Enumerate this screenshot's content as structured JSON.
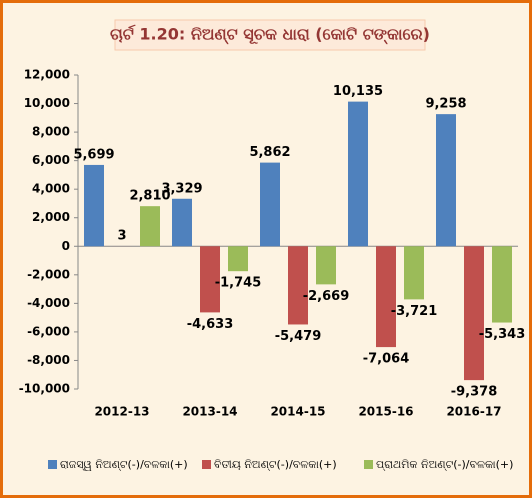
{
  "chart_data": {
    "type": "bar",
    "title": "ଚାର୍ଟ 1.20: ନିଅଣ୍ଟ ସୂଚକ ଧାରା (କୋଟି ଟଙ୍କାରେ)",
    "categories": [
      "2012-13",
      "2013-14",
      "2014-15",
      "2015-16",
      "2016-17"
    ],
    "series": [
      {
        "name": "ରାଜସ୍ୱ ନିଅଣ୍ଟ(-)/ବଳକା(+)",
        "color": "#4f81bd",
        "values": [
          5699,
          3329,
          5862,
          10135,
          9258
        ],
        "value_labels": [
          "5,699",
          "3,329",
          "5,862",
          "10,135",
          "9,258"
        ]
      },
      {
        "name": "ବିତୀୟ ନିଅଣ୍ଟ(-)/ବଳକା(+)",
        "color": "#c0504d",
        "values": [
          3,
          -4633,
          -5479,
          -7064,
          -9378
        ],
        "value_labels": [
          "3",
          "-4,633",
          "-5,479",
          "-7,064",
          "-9,378"
        ]
      },
      {
        "name": "ପ୍ରାଥମିକ ନିଅଣ୍ଟ(-)/ବଳକା(+)",
        "color": "#9bbb59",
        "values": [
          2810,
          -1745,
          -2669,
          -3721,
          -5343
        ],
        "value_labels": [
          "2,810",
          "-1,745",
          "-2,669",
          "-3,721",
          "-5,343"
        ]
      }
    ],
    "ylim": [
      -10000,
      12000
    ],
    "yticks": [
      {
        "value": -10000,
        "label": "-10,000"
      },
      {
        "value": -8000,
        "label": "-8,000"
      },
      {
        "value": -6000,
        "label": "-6,000"
      },
      {
        "value": -4000,
        "label": "-4,000"
      },
      {
        "value": -2000,
        "label": "-2,000"
      },
      0,
      {
        "value": 2000,
        "label": "2,000"
      },
      {
        "value": 4000,
        "label": "4,000"
      },
      {
        "value": 6000,
        "label": "6,000"
      },
      {
        "value": 8000,
        "label": "8,000"
      },
      {
        "value": 10000,
        "label": "10,000"
      },
      {
        "value": 12000,
        "label": "12,000"
      }
    ],
    "grid": false,
    "legend": "bottom"
  }
}
